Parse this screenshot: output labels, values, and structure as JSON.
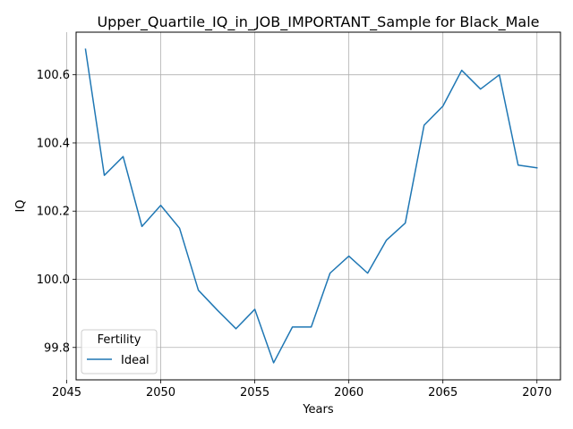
{
  "chart_data": {
    "type": "line",
    "title": "Upper_Quartile_IQ_in_JOB_IMPORTANT_Sample for Black_Male",
    "xlabel": "Years",
    "ylabel": "IQ",
    "xlim": [
      2045.5,
      2071.25
    ],
    "ylim": [
      99.705,
      100.725
    ],
    "xticks": [
      2045,
      2050,
      2055,
      2060,
      2065,
      2070
    ],
    "yticks": [
      99.8,
      100.0,
      100.2,
      100.4,
      100.6
    ],
    "xtick_labels": [
      "2045",
      "2050",
      "2055",
      "2060",
      "2065",
      "2070"
    ],
    "ytick_labels": [
      "99.8",
      "100.0",
      "100.2",
      "100.4",
      "100.6"
    ],
    "grid": true,
    "legend": {
      "title": "Fertility",
      "placement": "lower-left"
    },
    "series": [
      {
        "name": "Ideal",
        "color": "#1f77b4",
        "x": [
          2046,
          2047,
          2048,
          2049,
          2050,
          2051,
          2052,
          2053,
          2054,
          2055,
          2056,
          2057,
          2058,
          2059,
          2060,
          2061,
          2062,
          2063,
          2064,
          2065,
          2066,
          2067,
          2068,
          2069,
          2070
        ],
        "y": [
          100.675,
          100.305,
          100.36,
          100.155,
          100.217,
          100.15,
          99.968,
          99.91,
          99.855,
          99.912,
          99.755,
          99.86,
          99.86,
          100.018,
          100.068,
          100.018,
          100.115,
          100.165,
          100.452,
          100.508,
          100.613,
          100.558,
          100.6,
          100.335,
          100.327
        ]
      }
    ]
  }
}
